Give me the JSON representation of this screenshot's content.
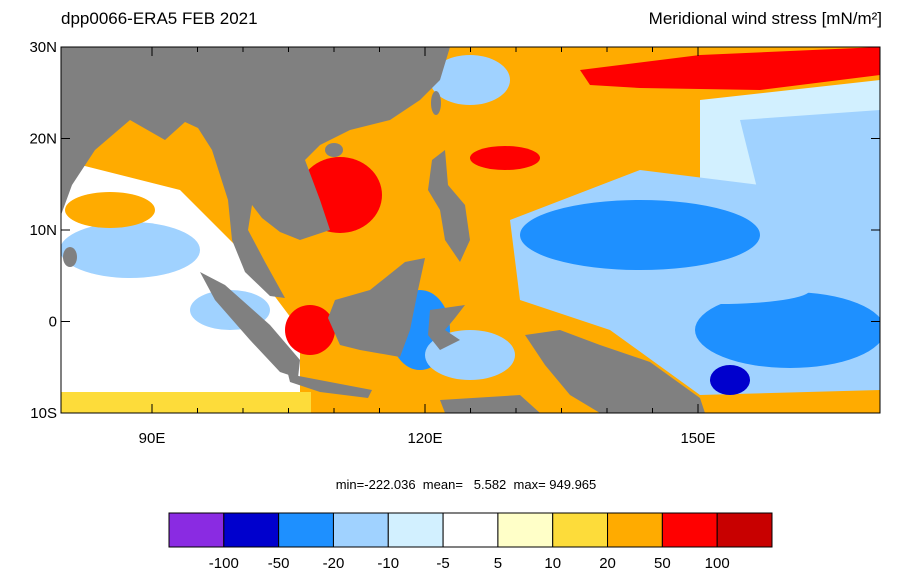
{
  "chart_data": {
    "type": "map",
    "title_left": "dpp0066-ERA5  FEB 2021",
    "title_right": "Meridional wind stress [mN/m²]",
    "xlim": [
      80,
      170
    ],
    "ylim": [
      -10,
      30
    ],
    "xticks": [
      {
        "value": 90,
        "label": "90E"
      },
      {
        "value": 120,
        "label": "120E"
      },
      {
        "value": 150,
        "label": "150E"
      }
    ],
    "yticks": [
      {
        "value": 30,
        "label": "30N"
      },
      {
        "value": 20,
        "label": "20N"
      },
      {
        "value": 10,
        "label": "10N"
      },
      0,
      {
        "value": -10,
        "label": "10S"
      }
    ],
    "stats": "min=-222.036  mean=   5.582  max= 949.965",
    "colorbar": {
      "levels": [
        -100,
        -50,
        -20,
        -10,
        -5,
        5,
        10,
        20,
        50,
        100
      ],
      "colors": [
        "#8a2be2",
        "#0000cd",
        "#1e90ff",
        "#a0d2ff",
        "#d2f0ff",
        "#ffffff",
        "#ffffc8",
        "#fddc3a",
        "#ffab00",
        "#ff0000",
        "#c80000"
      ]
    }
  }
}
